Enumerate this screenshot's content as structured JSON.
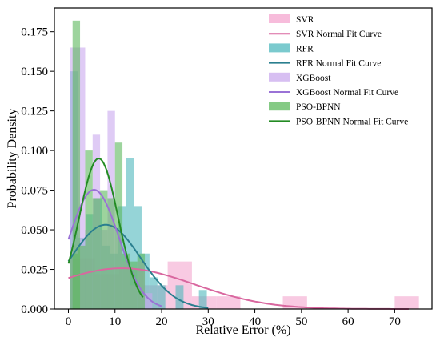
{
  "chart_data": {
    "type": "bar",
    "xlabel": "Relative Error (%)",
    "ylabel": "Probability Density",
    "xlim": [
      -3,
      78
    ],
    "ylim": [
      0,
      0.19
    ],
    "xticks": [
      "0",
      "10",
      "20",
      "30",
      "40",
      "50",
      "60",
      "70"
    ],
    "yticks": [
      "0.000",
      "0.025",
      "0.050",
      "0.075",
      "0.100",
      "0.125",
      "0.150",
      "0.175"
    ],
    "legend_position": "top-right",
    "series": [
      {
        "name": "SVR",
        "color": "#f4a6cf",
        "fit_name": "SVR Normal Fit Curve",
        "fit_color": "#d9679f",
        "fit_mean": 11.5,
        "fit_sd": 15.5,
        "fit_range": [
          0,
          73
        ],
        "bin_width": 5.2,
        "bins": [
          {
            "x": 0.5,
            "y": 0.032
          },
          {
            "x": 5.7,
            "y": 0.022
          },
          {
            "x": 10.9,
            "y": 0.025
          },
          {
            "x": 16.1,
            "y": 0.015
          },
          {
            "x": 21.3,
            "y": 0.03
          },
          {
            "x": 26.5,
            "y": 0.008
          },
          {
            "x": 31.7,
            "y": 0.008
          },
          {
            "x": 46.0,
            "y": 0.008
          },
          {
            "x": 70.0,
            "y": 0.008
          }
        ]
      },
      {
        "name": "RFR",
        "color": "#4fb8bd",
        "fit_name": "RFR Normal Fit Curve",
        "fit_color": "#2a7f8f",
        "fit_mean": 8.0,
        "fit_sd": 7.5,
        "fit_range": [
          0,
          30
        ],
        "bin_width": 1.7,
        "bins": [
          {
            "x": 0.4,
            "y": 0.15
          },
          {
            "x": 2.1,
            "y": 0.045
          },
          {
            "x": 3.8,
            "y": 0.06
          },
          {
            "x": 5.5,
            "y": 0.07
          },
          {
            "x": 7.2,
            "y": 0.04
          },
          {
            "x": 8.9,
            "y": 0.035
          },
          {
            "x": 10.6,
            "y": 0.065
          },
          {
            "x": 12.3,
            "y": 0.095
          },
          {
            "x": 14.0,
            "y": 0.065
          },
          {
            "x": 15.7,
            "y": 0.035
          },
          {
            "x": 17.4,
            "y": 0.02
          },
          {
            "x": 19.1,
            "y": 0.015
          },
          {
            "x": 23.0,
            "y": 0.015
          },
          {
            "x": 28.0,
            "y": 0.012
          }
        ]
      },
      {
        "name": "XGBoost",
        "color": "#c9a9ee",
        "fit_name": "XGBoost Normal Fit Curve",
        "fit_color": "#9a72d6",
        "fit_mean": 5.5,
        "fit_sd": 5.3,
        "fit_range": [
          0,
          20
        ],
        "bin_width": 1.6,
        "bins": [
          {
            "x": 0.4,
            "y": 0.165
          },
          {
            "x": 2.0,
            "y": 0.165
          },
          {
            "x": 3.6,
            "y": 0.05
          },
          {
            "x": 5.2,
            "y": 0.11
          },
          {
            "x": 6.8,
            "y": 0.05
          },
          {
            "x": 8.4,
            "y": 0.125
          },
          {
            "x": 10.0,
            "y": 0.05
          },
          {
            "x": 11.6,
            "y": 0.03
          },
          {
            "x": 13.2,
            "y": 0.015
          },
          {
            "x": 14.8,
            "y": 0.03
          },
          {
            "x": 16.4,
            "y": 0.01
          }
        ]
      },
      {
        "name": "PSO-BPNN",
        "color": "#5cb85c",
        "fit_name": "PSO-BPNN Normal Fit Curve",
        "fit_color": "#238b23",
        "fit_mean": 6.5,
        "fit_sd": 4.2,
        "fit_range": [
          0,
          16
        ],
        "bin_width": 1.6,
        "bins": [
          {
            "x": 0.4,
            "y": 0.035
          },
          {
            "x": 0.9,
            "y": 0.182
          },
          {
            "x": 2.0,
            "y": 0.04
          },
          {
            "x": 3.6,
            "y": 0.1
          },
          {
            "x": 5.2,
            "y": 0.07
          },
          {
            "x": 6.8,
            "y": 0.075
          },
          {
            "x": 8.4,
            "y": 0.07
          },
          {
            "x": 10.0,
            "y": 0.105
          },
          {
            "x": 11.6,
            "y": 0.035
          },
          {
            "x": 13.2,
            "y": 0.03
          },
          {
            "x": 14.8,
            "y": 0.035
          }
        ]
      }
    ]
  }
}
